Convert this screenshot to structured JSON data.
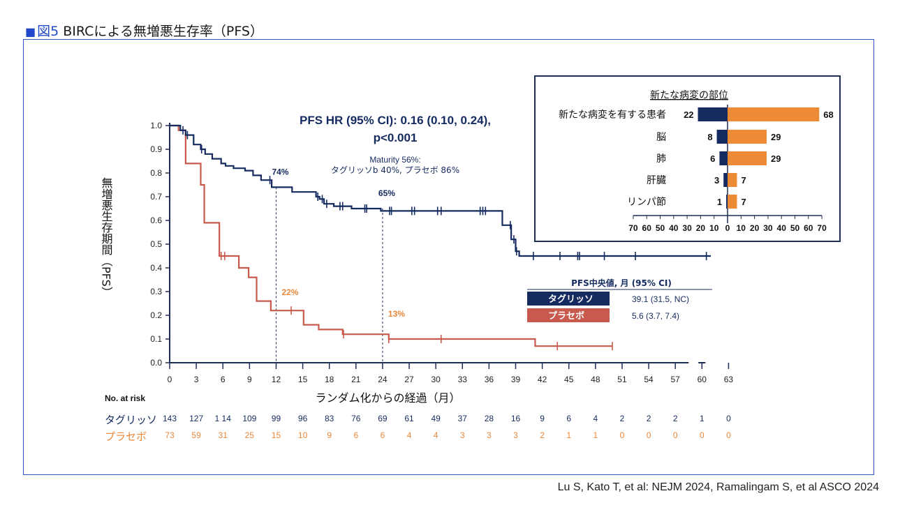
{
  "figure": {
    "title_marker": "■",
    "title_fig": "図5",
    "title_text": "BIRCによる無増悪生存率（PFS）",
    "citation": "Lu S, Kato T, et al: NEJM 2024, Ramalingam S, et al ASCO 2024"
  },
  "colors": {
    "tagrisso": "#152b5f",
    "placebo": "#c75a4c",
    "bar_orange": "#ec8a35",
    "frame": "#3457c8",
    "accent": "#e9873a"
  },
  "chart_data": [
    {
      "type": "line",
      "subtype": "kaplan-meier",
      "title": "PFS HR (95% CI): 0.16 (0.10, 0.24),",
      "title_line2": "p<0.001",
      "maturity_line1": "Maturity 56%:",
      "maturity_line2": "タグリッソb 40%, プラセボ 86%",
      "xlabel": "ランダム化からの経過（月）",
      "ylabel": "無増悪生存期間（PFS）",
      "xlim": [
        0,
        63
      ],
      "ylim": [
        0,
        1.0
      ],
      "xticks": [
        0,
        3,
        6,
        9,
        12,
        15,
        18,
        21,
        24,
        27,
        30,
        33,
        36,
        39,
        42,
        45,
        48,
        51,
        54,
        57,
        60,
        63
      ],
      "yticks": [
        "0.0",
        "0.1",
        "0.2",
        "0.3",
        "0.4",
        "0.5",
        "0.6",
        "0.7",
        "0.8",
        "0.9",
        "1.0"
      ],
      "series": [
        {
          "name": "タグリッソ",
          "x": [
            0,
            1.2,
            1.8,
            2.7,
            3.5,
            4.0,
            4.8,
            5.8,
            6.3,
            7.2,
            8.5,
            9.4,
            10.3,
            11.5,
            13.8,
            16.5,
            16.9,
            17.4,
            18.5,
            20.5,
            21.8,
            23.8,
            37.5,
            38.5,
            39.0,
            39.4,
            50.3
          ],
          "y": [
            1.0,
            0.98,
            0.96,
            0.92,
            0.9,
            0.88,
            0.86,
            0.84,
            0.83,
            0.82,
            0.81,
            0.79,
            0.77,
            0.74,
            0.72,
            0.7,
            0.69,
            0.67,
            0.66,
            0.65,
            0.65,
            0.64,
            0.58,
            0.52,
            0.47,
            0.45,
            0.45
          ],
          "censor_x": [
            1.5,
            2.0,
            3.6,
            11.3,
            16.7,
            17.2,
            17.7,
            19.2,
            19.5,
            22.0,
            22.2,
            24.8,
            25.0,
            27.3,
            27.6,
            30.2,
            30.6,
            35.0,
            35.3,
            35.6,
            38.4,
            38.8,
            39.1,
            41.0,
            44.0,
            46.0,
            46.2,
            49.0,
            52.5,
            60.5
          ],
          "end_x": 61,
          "landmarks": [
            {
              "x": 12,
              "y": 0.74,
              "label": "74%"
            },
            {
              "x": 24,
              "y": 0.65,
              "label": "65%"
            }
          ]
        },
        {
          "name": "プラセボ",
          "x": [
            0,
            1.0,
            1.8,
            3.5,
            3.9,
            4.6,
            5.6,
            5.9,
            7.8,
            8.9,
            9.8,
            11.4,
            13.8,
            15.1,
            16.8,
            19.5,
            23.5,
            24.7,
            41.2
          ],
          "y": [
            1.0,
            0.98,
            0.84,
            0.75,
            0.59,
            0.59,
            0.45,
            0.45,
            0.4,
            0.36,
            0.26,
            0.22,
            0.22,
            0.16,
            0.14,
            0.12,
            0.12,
            0.1,
            0.07
          ],
          "censor_x": [
            5.8,
            6.2,
            13.7,
            19.6,
            24.7,
            30.6,
            43.7,
            49.9
          ],
          "end_x": 49.9,
          "landmarks": [
            {
              "x": 12,
              "y": 0.22,
              "label": "22%"
            },
            {
              "x": 24,
              "y": 0.13,
              "label": "13%"
            }
          ]
        }
      ],
      "median_table": {
        "header": "PFS中央値, 月 (95% CI)",
        "rows": [
          {
            "name": "タグリッソ",
            "value": "39.1 (31.5, NC)"
          },
          {
            "name": "プラセボ",
            "value": "5.6 (3.7, 7.4)"
          }
        ]
      },
      "risk_table": {
        "header": "No. at risk",
        "rows": [
          {
            "name": "タグリッソ",
            "values": [
              "143",
              "127",
              "1 14",
              "109",
              "99",
              "96",
              "83",
              "76",
              "69",
              "61",
              "49",
              "37",
              "28",
              "16",
              "9",
              "6",
              "4",
              "2",
              "2",
              "2",
              "1",
              "0"
            ]
          },
          {
            "name": "プラセボ",
            "values": [
              "73",
              "59",
              "31",
              "25",
              "15",
              "10",
              "9",
              "6",
              "6",
              "4",
              "4",
              "3",
              "3",
              "3",
              "2",
              "1",
              "1",
              "0",
              "0",
              "0",
              "0",
              "0"
            ]
          }
        ]
      }
    },
    {
      "type": "bar",
      "orientation": "horizontal-diverging",
      "title": "新たな病変の部位",
      "categories": [
        "新たな病変を有する患者",
        "脳",
        "肺",
        "肝臓",
        "リンパ節"
      ],
      "series": [
        {
          "name": "タグリッソ",
          "values": [
            22,
            8,
            6,
            3,
            1
          ]
        },
        {
          "name": "プラセボ",
          "values": [
            68,
            29,
            29,
            7,
            7
          ]
        }
      ],
      "xlim": [
        -70,
        70
      ],
      "xticks": [
        "70",
        "60",
        "50",
        "40",
        "30",
        "20",
        "10",
        "0",
        "10",
        "20",
        "30",
        "40",
        "50",
        "60",
        "70"
      ]
    }
  ]
}
